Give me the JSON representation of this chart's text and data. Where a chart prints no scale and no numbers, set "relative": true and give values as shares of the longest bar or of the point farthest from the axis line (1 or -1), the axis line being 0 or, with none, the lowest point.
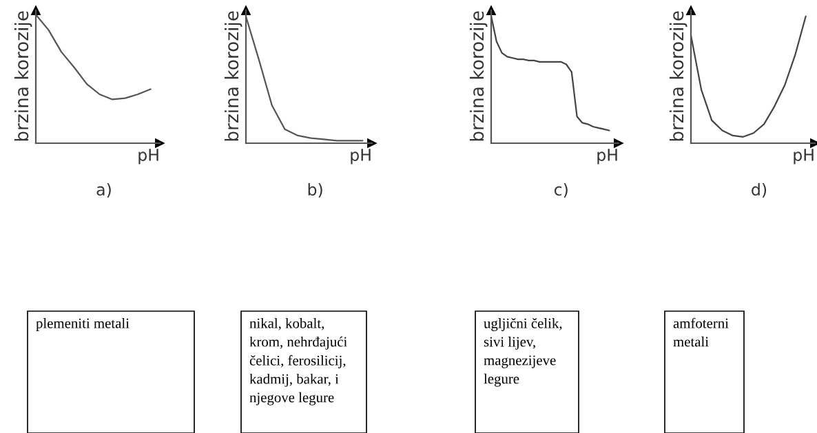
{
  "chart_data": [
    {
      "type": "line",
      "relative": true,
      "ylabel": "brzina korozije",
      "xlabel": "pH",
      "title": "a)",
      "color": "#555555",
      "categories": [
        null,
        null,
        null,
        null,
        null,
        null,
        null,
        null,
        null,
        null
      ],
      "values": [
        1.0,
        0.88,
        0.71,
        0.59,
        0.46,
        0.38,
        0.34,
        0.35,
        0.38,
        0.42
      ],
      "annotations": [
        "plemeniti metali"
      ]
    },
    {
      "type": "line",
      "relative": true,
      "ylabel": "brzina korozije",
      "xlabel": "pH",
      "title": "b)",
      "color": "#555555",
      "categories": [
        null,
        null,
        null,
        null,
        null,
        null,
        null,
        null,
        null,
        null
      ],
      "values": [
        1.0,
        0.66,
        0.3,
        0.11,
        0.06,
        0.04,
        0.03,
        0.02,
        0.02,
        0.02
      ],
      "annotations": [
        "nikal, kobalt,\nkrom, nehrđajući\nčelici, ferosilicij,\nkadmij, bakar, i\nnjegove legure"
      ]
    },
    {
      "type": "line",
      "relative": true,
      "ylabel": "brzina korozije",
      "xlabel": "pH",
      "title": "c)",
      "color": "#444444",
      "categories": [
        null,
        null,
        null,
        null,
        null,
        null,
        null,
        null,
        null,
        null,
        null,
        null,
        null,
        null,
        null,
        null,
        null,
        null,
        null,
        null,
        null,
        null,
        null
      ],
      "values": [
        1.0,
        0.8,
        0.71,
        0.68,
        0.67,
        0.66,
        0.66,
        0.65,
        0.65,
        0.64,
        0.64,
        0.64,
        0.64,
        0.64,
        0.62,
        0.56,
        0.21,
        0.16,
        0.15,
        0.13,
        0.12,
        0.11,
        0.1
      ],
      "annotations": [
        "ugljični čelik,\nsivi lijev,\nmagnezijeve\nlegure"
      ]
    },
    {
      "type": "line",
      "relative": true,
      "ylabel": "brzina korozije",
      "xlabel": "pH",
      "title": "d)",
      "color": "#444444",
      "categories": [
        null,
        null,
        null,
        null,
        null,
        null,
        null,
        null,
        null,
        null,
        null,
        null
      ],
      "values": [
        0.85,
        0.42,
        0.18,
        0.1,
        0.06,
        0.05,
        0.08,
        0.15,
        0.29,
        0.46,
        0.7,
        1.0
      ],
      "annotations": [
        "amfoterni\nmetali"
      ]
    }
  ]
}
